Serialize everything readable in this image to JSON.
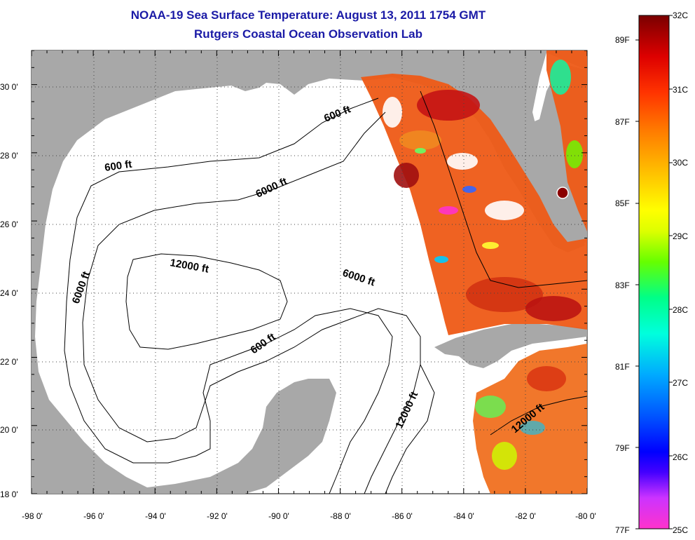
{
  "title": "NOAA-19 Sea Surface Temperature:  August 13, 2011 1754 GMT",
  "subtitle": "Rutgers Coastal Ocean Observation Lab",
  "map": {
    "region": "Gulf of Mexico",
    "lon_range": [
      -98,
      -80
    ],
    "lat_range": [
      18,
      31
    ],
    "lat_ticks": [
      "30 0'",
      "28 0'",
      "26 0'",
      "24 0'",
      "22 0'",
      "20 0'",
      "18 0'"
    ],
    "lon_ticks": [
      "-98 0'",
      "-96 0'",
      "-94 0'",
      "-92 0'",
      "-90 0'",
      "-88 0'",
      "-86 0'",
      "-84 0'",
      "-82 0'",
      "-80 0'"
    ],
    "grid": true,
    "colors": {
      "land": "#a8a8a8",
      "water": "#ffffff",
      "contour": "#000000"
    },
    "contour_labels": [
      "600 ft",
      "600 ft",
      "6000 ft",
      "12000 ft",
      "6000 ft",
      "6000 ft",
      "600 ft",
      "12000 ft",
      "12000 ft"
    ]
  },
  "colorbar": {
    "celsius_labels": [
      "32C",
      "31C",
      "30C",
      "29C",
      "28C",
      "27C",
      "26C",
      "25C"
    ],
    "fahrenheit_labels": [
      "89F",
      "87F",
      "85F",
      "83F",
      "81F",
      "79F",
      "77F"
    ],
    "stops": [
      "#ff33cc",
      "#9933ff",
      "#0000ff",
      "#0066ff",
      "#00ccff",
      "#00ffcc",
      "#00ff66",
      "#66ff00",
      "#ccff00",
      "#ffff00",
      "#ffcc00",
      "#ff9900",
      "#ff6600",
      "#ff3300",
      "#e00000",
      "#a00000",
      "#6b0000"
    ]
  }
}
